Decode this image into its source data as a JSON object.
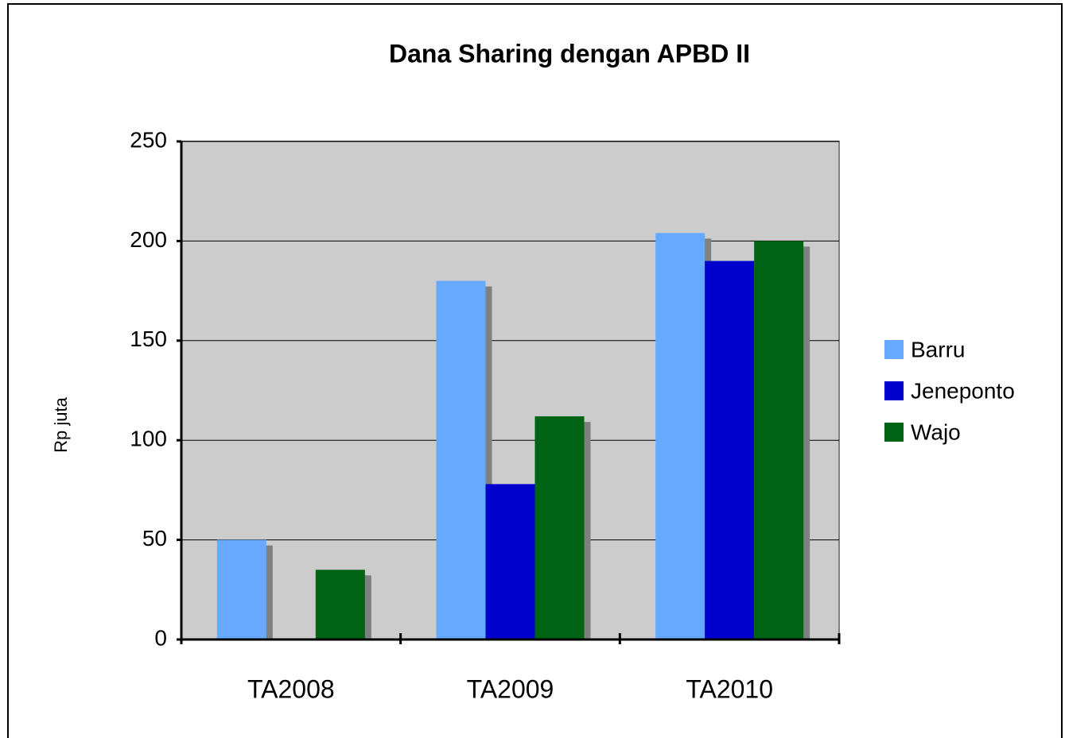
{
  "chart_data": {
    "type": "bar",
    "title": "Dana Sharing dengan APBD II",
    "y_label": "Rp juta",
    "categories": [
      "TA2008",
      "TA2009",
      "TA2010"
    ],
    "series": [
      {
        "name": "Barru",
        "color": "#66aaff",
        "values": [
          50,
          180,
          204
        ]
      },
      {
        "name": "Jeneponto",
        "color": "#0000cc",
        "values": [
          0,
          78,
          190
        ]
      },
      {
        "name": "Wajo",
        "color": "#006414",
        "values": [
          35,
          112,
          200
        ]
      }
    ],
    "ylim": [
      0,
      250
    ],
    "yticks": [
      0,
      50,
      100,
      150,
      200,
      250
    ],
    "grid": true,
    "legend": "right"
  }
}
